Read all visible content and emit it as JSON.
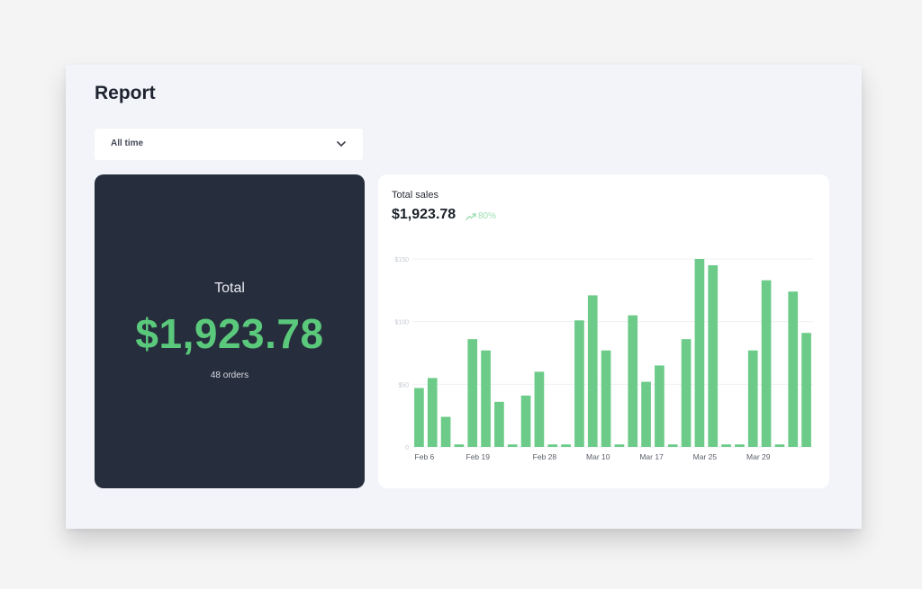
{
  "header": {
    "title": "Report"
  },
  "filter": {
    "selected": "All time"
  },
  "total_card": {
    "label": "Total",
    "amount": "$1,923.78",
    "orders": "48 orders"
  },
  "sales_card": {
    "title": "Total sales",
    "amount": "$1,923.78",
    "change": "80%"
  },
  "colors": {
    "accent": "#5bc97c",
    "bar": "#6ccb88",
    "dark_card": "#262d3c",
    "background": "#f2f4fa"
  },
  "chart_data": {
    "type": "bar",
    "title": "",
    "xlabel": "",
    "ylabel": "",
    "ylim": [
      0,
      150
    ],
    "yticks": [
      "0",
      "$50",
      "$100",
      "$150"
    ],
    "ytick_values": [
      0,
      50,
      100,
      150
    ],
    "x_tick_labels": [
      {
        "label": "Feb 6",
        "index": 0
      },
      {
        "label": "Feb 19",
        "index": 4
      },
      {
        "label": "Feb 28",
        "index": 9
      },
      {
        "label": "Mar 10",
        "index": 13
      },
      {
        "label": "Mar 17",
        "index": 17
      },
      {
        "label": "Mar 25",
        "index": 21
      },
      {
        "label": "Mar 29",
        "index": 25
      }
    ],
    "values": [
      47,
      55,
      24,
      2,
      86,
      77,
      36,
      2,
      41,
      60,
      2,
      2,
      101,
      121,
      77,
      2,
      105,
      52,
      65,
      2,
      86,
      150,
      145,
      2,
      2,
      77,
      133,
      2,
      124,
      91
    ],
    "grid": true,
    "legend": "none"
  }
}
